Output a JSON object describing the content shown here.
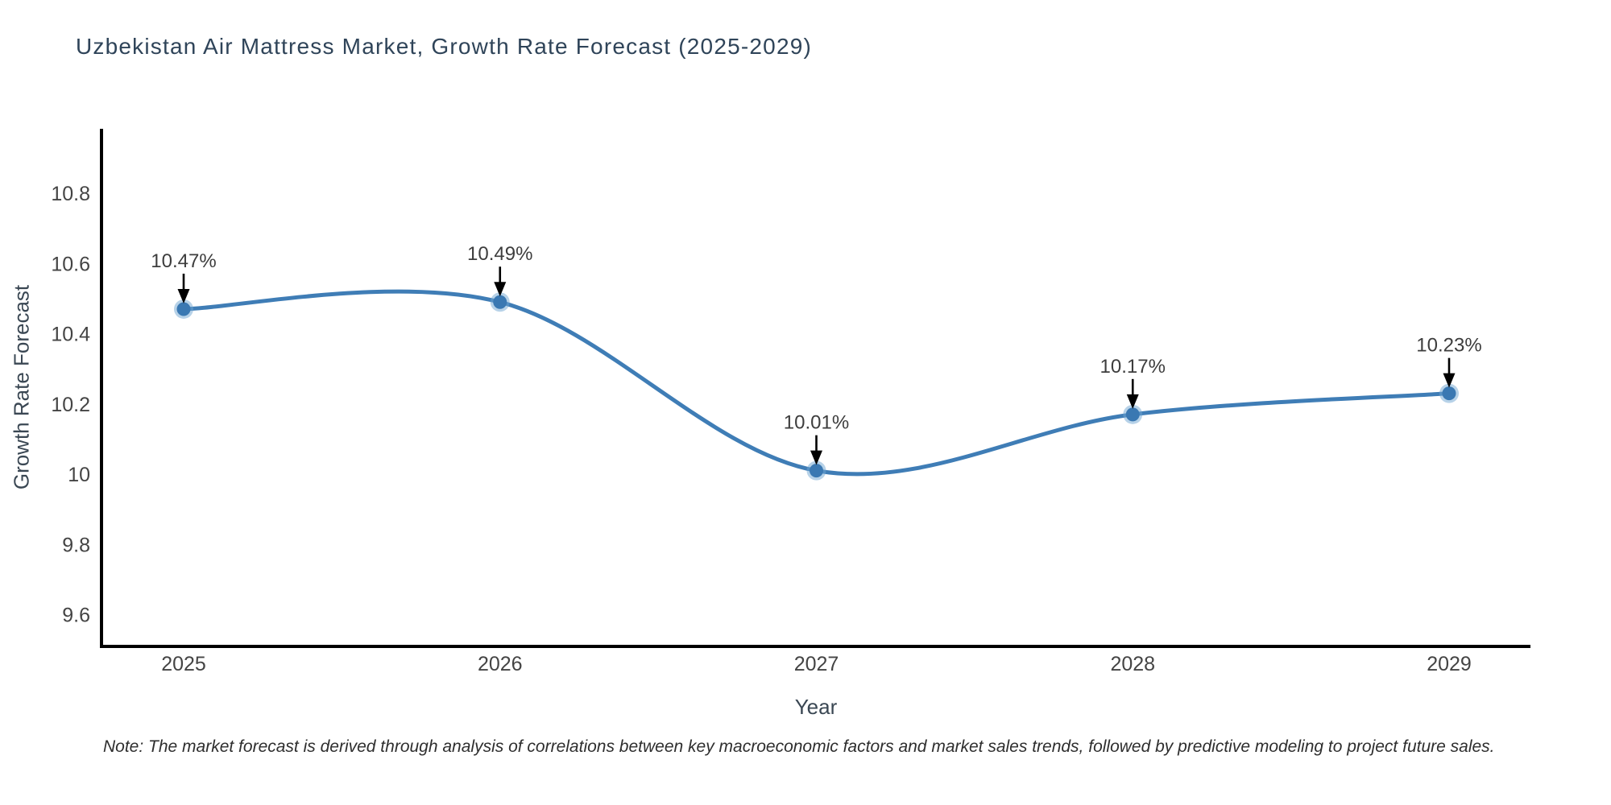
{
  "figure": {
    "title": "Uzbekistan Air Mattress Market, Growth Rate Forecast (2025-2029)",
    "footnote": "Note: The market forecast is derived through analysis of correlations between key macroeconomic factors and market sales trends, followed by predictive modeling to project future sales."
  },
  "chart_data": {
    "type": "line",
    "title": "Uzbekistan Air Mattress Market, Growth Rate Forecast (2025-2029)",
    "xlabel": "Year",
    "ylabel": "Growth Rate Forecast",
    "categories": [
      "2025",
      "2026",
      "2027",
      "2028",
      "2029"
    ],
    "series": [
      {
        "name": "Growth Rate Forecast",
        "values": [
          10.47,
          10.49,
          10.01,
          10.17,
          10.23
        ],
        "point_labels": [
          "10.47%",
          "10.49%",
          "10.01%",
          "10.17%",
          "10.23%"
        ]
      }
    ],
    "yticks": [
      9.6,
      9.8,
      10.0,
      10.2,
      10.4,
      10.6,
      10.8
    ],
    "ytick_labels": [
      "9.6",
      "9.8",
      "10",
      "10.2",
      "10.4",
      "10.6",
      "10.8"
    ],
    "ylim": [
      9.51,
      10.98
    ],
    "grid": false,
    "legend_position": "none",
    "curve": "spline",
    "annotations": "percent value label with downward arrow above each data point",
    "colors": {
      "line": "#3f7db6",
      "marker": "#3a78b2",
      "marker_halo": "#6fa6d2",
      "axis": "#000000",
      "tick_label": "#444444",
      "annotation_text": "#3d3d3d",
      "arrow": "#000000",
      "title": "#2f4459",
      "axis_title": "#3a4753",
      "note": "#2e2e2e",
      "background": "#ffffff"
    }
  }
}
